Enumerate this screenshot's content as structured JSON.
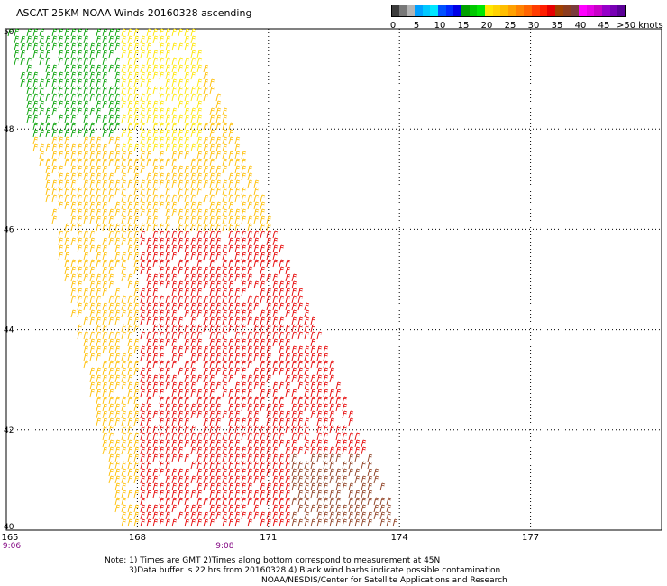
{
  "title": "ASCAT 25KM NOAA Winds 20160328 ascending",
  "legend": {
    "bins": [
      {
        "from": 0,
        "to": 5,
        "colors": [
          "#3c3c3c",
          "#787878",
          "#b4b4b4"
        ]
      },
      {
        "from": 5,
        "to": 10,
        "colors": [
          "#00a0ff",
          "#00c8ff",
          "#00e6ff"
        ]
      },
      {
        "from": 10,
        "to": 15,
        "colors": [
          "#0050ff",
          "#0028ff",
          "#0000e6"
        ]
      },
      {
        "from": 15,
        "to": 20,
        "colors": [
          "#00a000",
          "#00c800",
          "#00e600"
        ]
      },
      {
        "from": 20,
        "to": 25,
        "colors": [
          "#ffe600",
          "#ffd200",
          "#ffbe00"
        ]
      },
      {
        "from": 25,
        "to": 30,
        "colors": [
          "#ffa000",
          "#ff8200",
          "#ff6400"
        ]
      },
      {
        "from": 30,
        "to": 35,
        "colors": [
          "#ff3c00",
          "#ff1e00",
          "#e60000"
        ]
      },
      {
        "from": 35,
        "to": 40,
        "colors": [
          "#a04000",
          "#8c3c1e",
          "#7a3c3c"
        ]
      },
      {
        "from": 40,
        "to": 45,
        "colors": [
          "#ff00ff",
          "#e600e6",
          "#c800c8"
        ]
      },
      {
        "from": 45,
        "to": 50,
        "colors": [
          "#9600c8",
          "#7800b4",
          "#5a0096"
        ]
      }
    ],
    "ticks": [
      "0",
      "5",
      "10",
      "15",
      "20",
      "25",
      "30",
      "35",
      "40",
      "45",
      ">50 knots"
    ]
  },
  "map": {
    "lon_range": [
      165,
      180
    ],
    "lat_range": [
      40,
      50
    ],
    "lon_ticks": [
      165,
      168,
      171,
      174,
      177
    ],
    "lat_ticks": [
      40,
      42,
      44,
      46,
      48,
      50
    ],
    "grid": "dotted",
    "time_labels": [
      {
        "lon": 165,
        "text": "9:06"
      },
      {
        "lon": 170,
        "text": "9:08"
      }
    ]
  },
  "chart_data": {
    "type": "wind-barb-map",
    "swath": {
      "corners_lon_lat": [
        [
          165.0,
          50.0
        ],
        [
          169.2,
          50.0
        ],
        [
          174.0,
          40.0
        ],
        [
          167.6,
          40.0
        ]
      ],
      "wind_knots_by_region": [
        {
          "region": "northwest",
          "lat_range": [
            47.8,
            50
          ],
          "lon_range": [
            165,
            168
          ],
          "speed_knots": [
            15,
            20
          ],
          "color": "#00a000"
        },
        {
          "region": "north-central",
          "lat_range": [
            47.5,
            50
          ],
          "lon_range": [
            167.5,
            169.5
          ],
          "speed_knots": [
            20,
            25
          ],
          "color": "#ffe600"
        },
        {
          "region": "middle",
          "lat_range": [
            44,
            47.5
          ],
          "lon_range": [
            165,
            171
          ],
          "speed_knots": [
            20,
            30
          ],
          "color": "#ffbe00"
        },
        {
          "region": "southeast",
          "lat_range": [
            40,
            46
          ],
          "lon_range": [
            168,
            174
          ],
          "speed_knots": [
            30,
            40
          ],
          "color": "#e60000"
        },
        {
          "region": "southeast-edge",
          "lat_range": [
            40,
            41.5
          ],
          "lon_range": [
            171.5,
            174
          ],
          "speed_knots": [
            35,
            40
          ],
          "color": "#8c3c1e"
        }
      ]
    }
  },
  "notes": {
    "line1": "Note: 1) Times are GMT 2)Times along bottom correspond to measurement at 45N",
    "line2": "3)Data buffer is 22 hrs from 20160328 4) Black wind barbs indicate possible contamination",
    "line3": "NOAA/NESDIS/Center for Satellite Applications and Research"
  }
}
